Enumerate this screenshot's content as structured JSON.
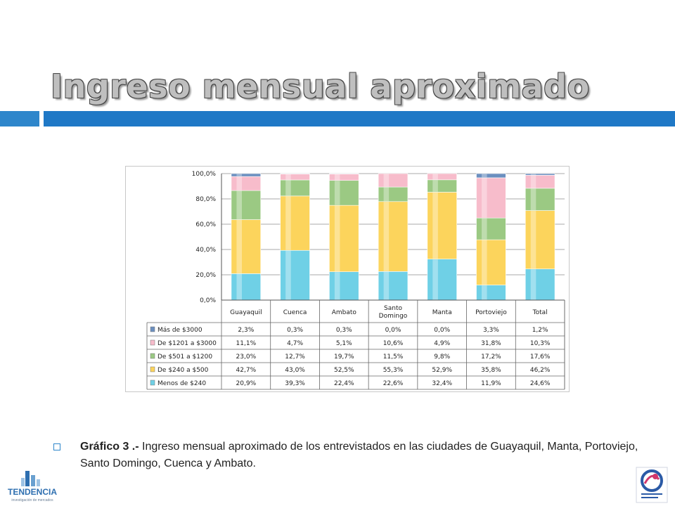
{
  "slide": {
    "title": "Ingreso mensual aproximado",
    "caption_label": "Gráfico 3 .-",
    "caption_text": " Ingreso mensual aproximado de los entrevistados en las ciudades de Guayaquil, Manta, Portoviejo, Santo Domingo, Cuenca y Ambato."
  },
  "logos": {
    "left_text": "TENDENCIA",
    "left_subtext": "investigación de mercados"
  },
  "colors": {
    "title_band": "#1f78c6",
    "accent": "#2e86cb"
  },
  "chart_data": {
    "type": "bar",
    "stacked": true,
    "title": "",
    "xlabel": "",
    "ylabel": "",
    "ylim": [
      0,
      100
    ],
    "y_ticks": [
      "0,0%",
      "20,0%",
      "40,0%",
      "60,0%",
      "80,0%",
      "100,0%"
    ],
    "grid": true,
    "legend_position": "table-left",
    "categories": [
      "Guayaquil",
      "Cuenca",
      "Ambato",
      "Santo Domingo",
      "Manta",
      "Portoviejo",
      "Total"
    ],
    "series": [
      {
        "name": "Menos de $240",
        "color": "#6fd0e6",
        "values": [
          20.9,
          39.3,
          22.4,
          22.6,
          32.4,
          11.9,
          24.6
        ],
        "labels": [
          "20,9%",
          "39,3%",
          "22,4%",
          "22,6%",
          "32,4%",
          "11,9%",
          "24,6%"
        ]
      },
      {
        "name": "De $240  a $500",
        "color": "#fcd45c",
        "values": [
          42.7,
          43.0,
          52.5,
          55.3,
          52.9,
          35.8,
          46.2
        ],
        "labels": [
          "42,7%",
          "43,0%",
          "52,5%",
          "55,3%",
          "52,9%",
          "35,8%",
          "46,2%"
        ]
      },
      {
        "name": "De $501  a $1200",
        "color": "#9bc983",
        "values": [
          23.0,
          12.7,
          19.7,
          11.5,
          9.8,
          17.2,
          17.6
        ],
        "labels": [
          "23,0%",
          "12,7%",
          "19,7%",
          "11,5%",
          "9,8%",
          "17,2%",
          "17,6%"
        ]
      },
      {
        "name": "De $1201  a $3000",
        "color": "#f7bccb",
        "values": [
          11.1,
          4.7,
          5.1,
          10.6,
          4.9,
          31.8,
          10.3
        ],
        "labels": [
          "11,1%",
          "4,7%",
          "5,1%",
          "10,6%",
          "4,9%",
          "31,8%",
          "10,3%"
        ]
      },
      {
        "name": "Más de $3000",
        "color": "#6b8fbf",
        "values": [
          2.3,
          0.3,
          0.3,
          0.0,
          0.0,
          3.3,
          1.2
        ],
        "labels": [
          "2,3%",
          "0,3%",
          "0,3%",
          "0,0%",
          "0,0%",
          "3,3%",
          "1,2%"
        ]
      }
    ]
  }
}
